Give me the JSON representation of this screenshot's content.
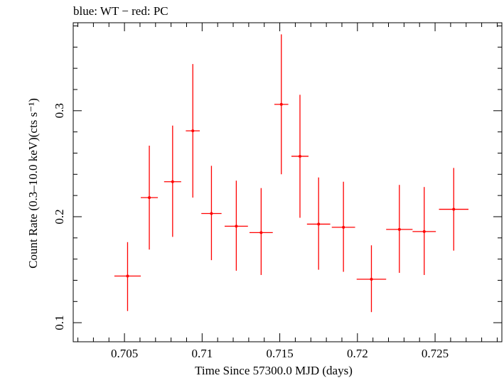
{
  "chart_data": {
    "type": "scatter",
    "title": "blue: WT − red: PC",
    "xlabel": "Time Since 57300.0 MJD (days)",
    "ylabel": "Count Rate (0.3–10.0 keV)(cts s⁻¹)",
    "xlim": [
      0.7017,
      0.7293
    ],
    "ylim": [
      0.082,
      0.383
    ],
    "x_ticks": [
      "0.705",
      "0.71",
      "0.715",
      "0.72",
      "0.725"
    ],
    "y_ticks": [
      "0.1",
      "0.2",
      "0.3"
    ],
    "series": [
      {
        "color": "#ff0000",
        "points": [
          {
            "x": 0.7052,
            "xerr": 0.00085,
            "y": 0.144,
            "ylo": 0.111,
            "yhi": 0.176
          },
          {
            "x": 0.7066,
            "xerr": 0.00055,
            "y": 0.218,
            "ylo": 0.169,
            "yhi": 0.267
          },
          {
            "x": 0.7081,
            "xerr": 0.00055,
            "y": 0.233,
            "ylo": 0.181,
            "yhi": 0.286
          },
          {
            "x": 0.7094,
            "xerr": 0.00045,
            "y": 0.281,
            "ylo": 0.218,
            "yhi": 0.344
          },
          {
            "x": 0.7106,
            "xerr": 0.00065,
            "y": 0.203,
            "ylo": 0.159,
            "yhi": 0.248
          },
          {
            "x": 0.7122,
            "xerr": 0.00075,
            "y": 0.191,
            "ylo": 0.149,
            "yhi": 0.234
          },
          {
            "x": 0.7138,
            "xerr": 0.00075,
            "y": 0.185,
            "ylo": 0.145,
            "yhi": 0.227
          },
          {
            "x": 0.7151,
            "xerr": 0.00045,
            "y": 0.306,
            "ylo": 0.24,
            "yhi": 0.372
          },
          {
            "x": 0.7163,
            "xerr": 0.00055,
            "y": 0.257,
            "ylo": 0.199,
            "yhi": 0.315
          },
          {
            "x": 0.7175,
            "xerr": 0.00075,
            "y": 0.193,
            "ylo": 0.15,
            "yhi": 0.237
          },
          {
            "x": 0.7191,
            "xerr": 0.00075,
            "y": 0.19,
            "ylo": 0.148,
            "yhi": 0.233
          },
          {
            "x": 0.7209,
            "xerr": 0.00095,
            "y": 0.141,
            "ylo": 0.11,
            "yhi": 0.173
          },
          {
            "x": 0.7227,
            "xerr": 0.00085,
            "y": 0.188,
            "ylo": 0.147,
            "yhi": 0.23
          },
          {
            "x": 0.7243,
            "xerr": 0.00075,
            "y": 0.186,
            "ylo": 0.145,
            "yhi": 0.228
          },
          {
            "x": 0.7262,
            "xerr": 0.00095,
            "y": 0.207,
            "ylo": 0.168,
            "yhi": 0.246
          }
        ]
      }
    ]
  }
}
